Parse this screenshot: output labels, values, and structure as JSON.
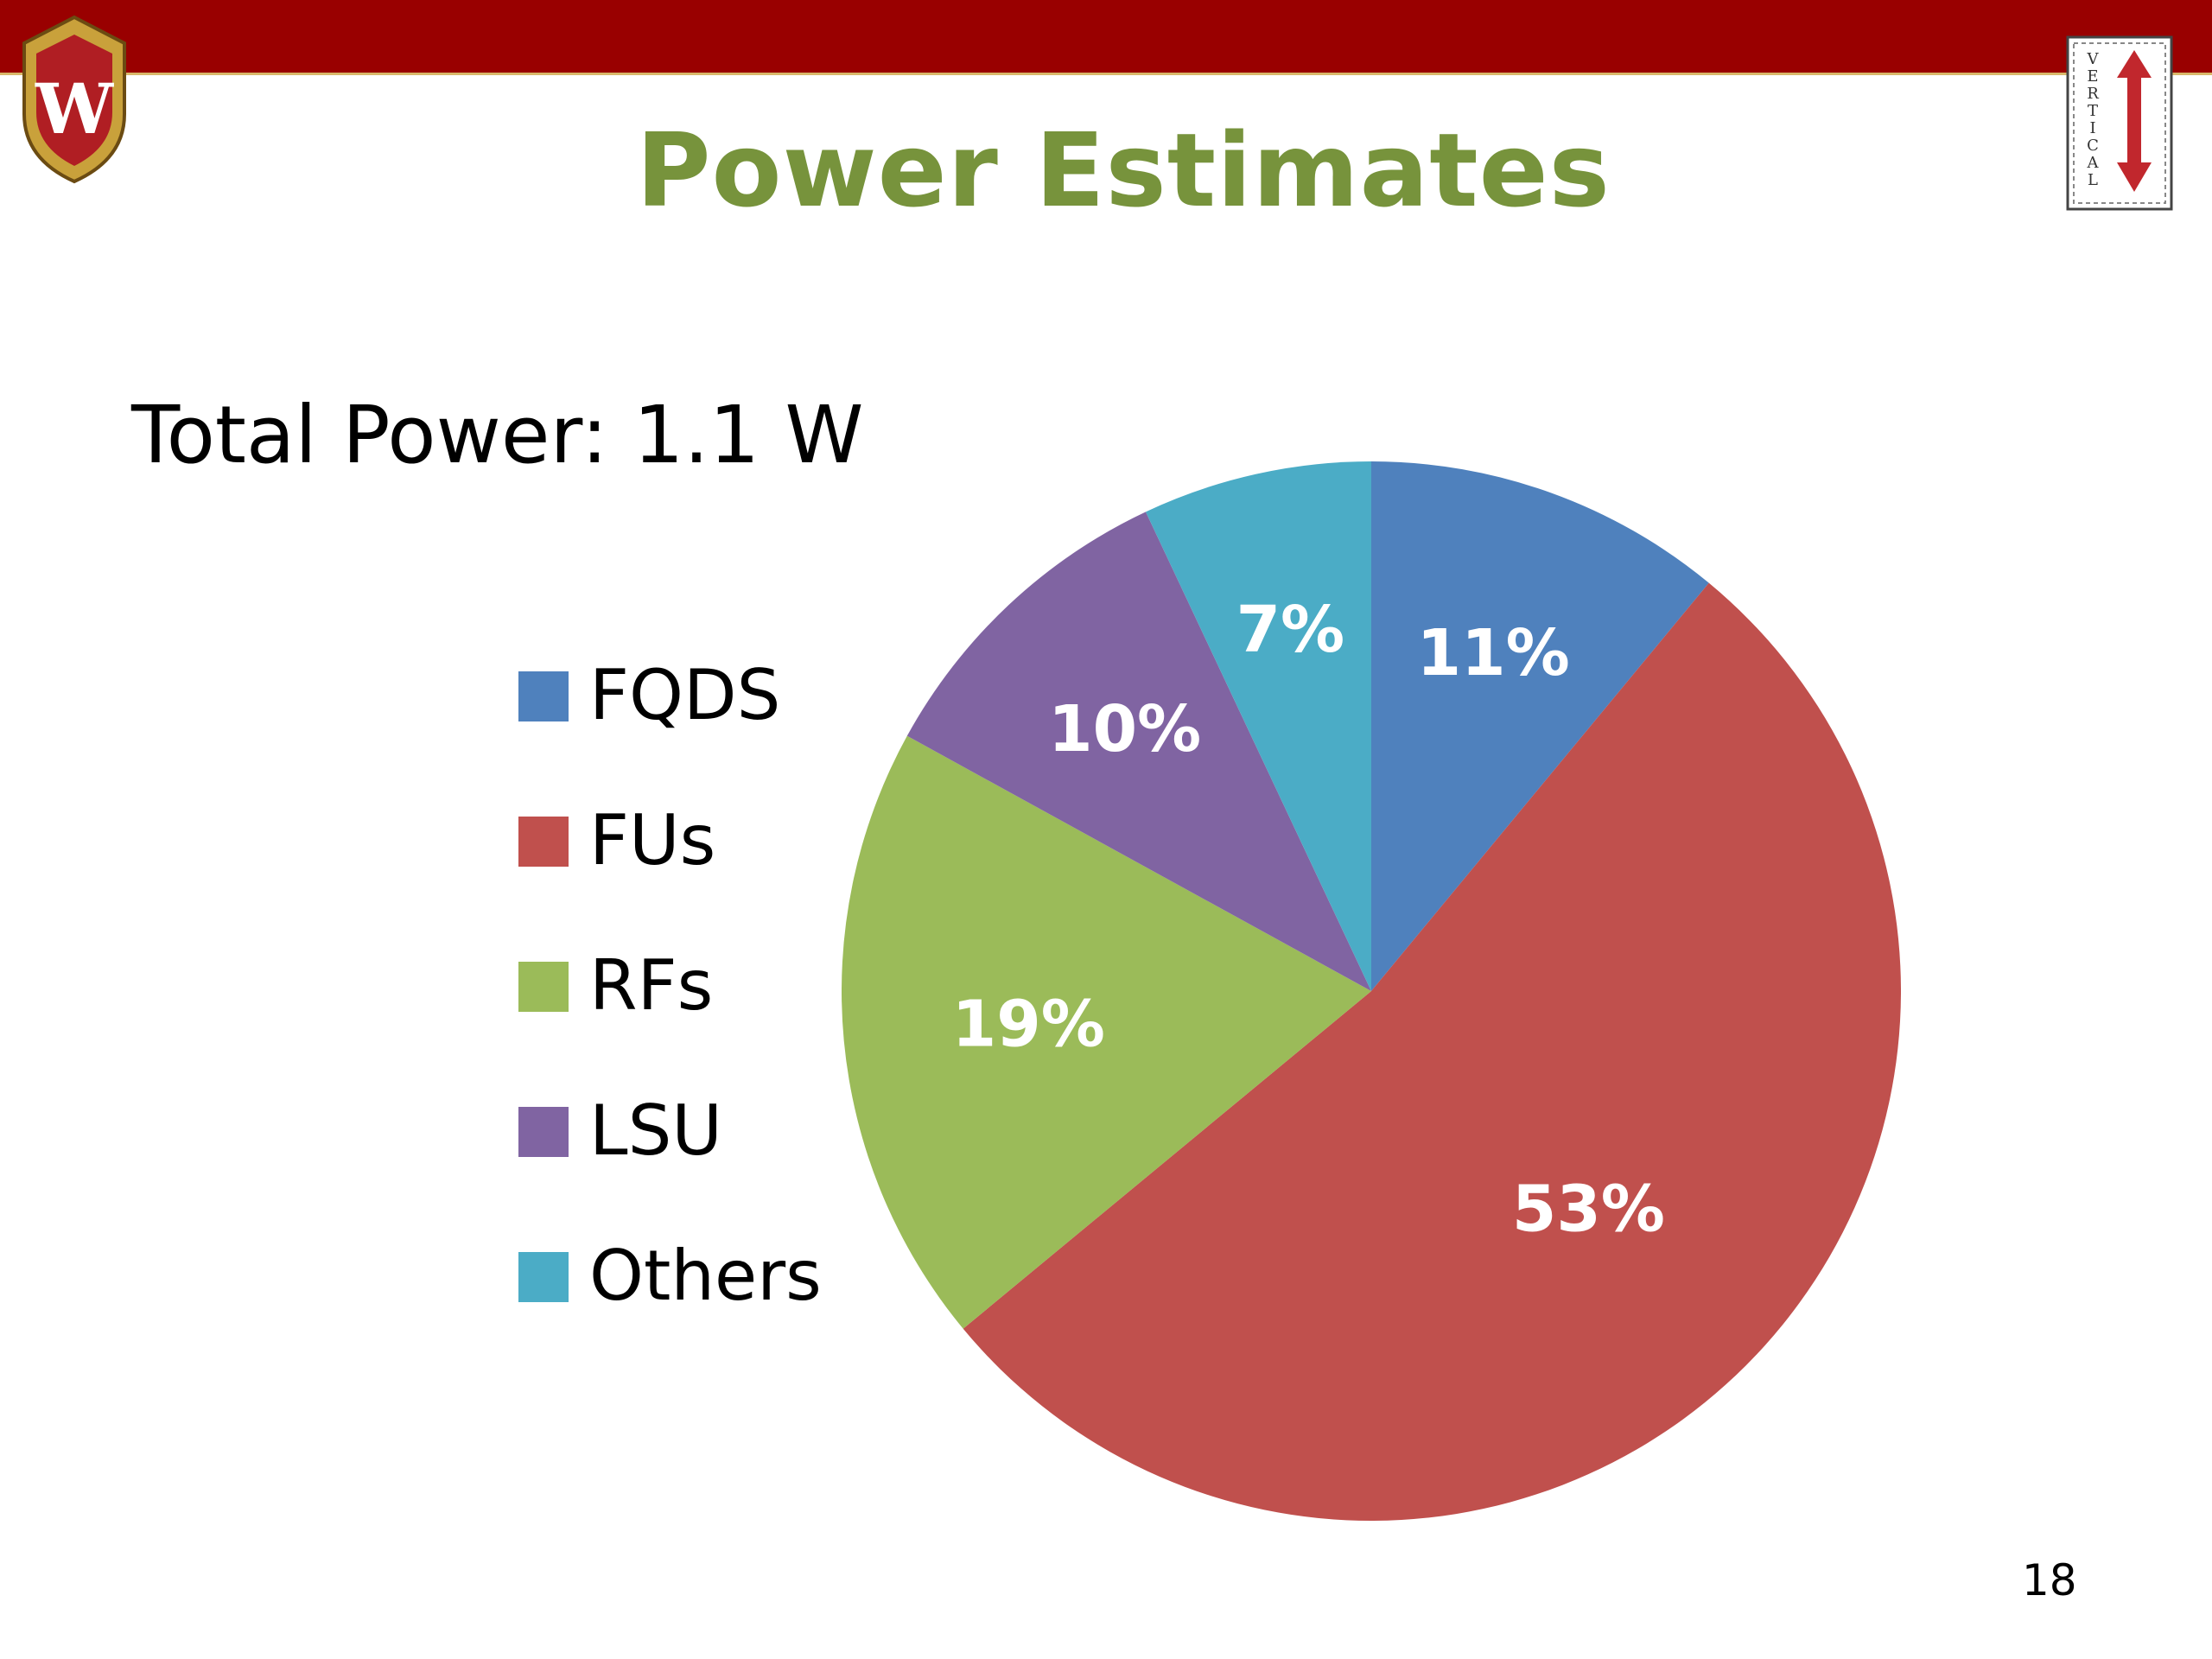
{
  "slide": {
    "title": "Power Estimates",
    "subtitle": "Total Power: 1.1 W",
    "page_number": "18",
    "top_bar_color": "#990000",
    "title_color": "#77933c"
  },
  "logos": {
    "left_crest": "W",
    "right_badge": "VERTICAL"
  },
  "chart_data": {
    "type": "pie",
    "categories": [
      "FQDS",
      "FUs",
      "RFs",
      "LSU",
      "Others"
    ],
    "values": [
      11,
      53,
      19,
      10,
      7
    ],
    "labels": [
      "11%",
      "53%",
      "19%",
      "10%",
      "7%"
    ],
    "colors": [
      "#4f81bd",
      "#c0504d",
      "#9bbb59",
      "#8064a2",
      "#4bacc6"
    ],
    "start_angle_deg": 0,
    "direction": "clockwise",
    "legend": "left"
  }
}
